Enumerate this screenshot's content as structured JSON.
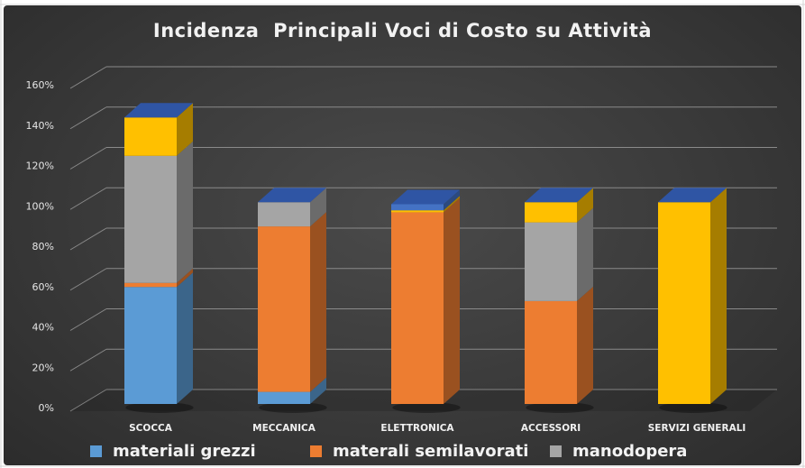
{
  "chart_data": {
    "type": "bar",
    "stacked": true,
    "title": "Incidenza  Principali Voci di Costo su Attività",
    "categories": [
      "SCOCCA",
      "MECCANICA",
      "ELETTRONICA",
      "ACCESSORI",
      "SERVIZI GENERALI"
    ],
    "y_ticks": [
      "0%",
      "20%",
      "40%",
      "60%",
      "80%",
      "100%",
      "120%",
      "140%",
      "160%"
    ],
    "ylim": [
      0,
      160
    ],
    "grid": true,
    "legend_position": "bottom",
    "series": [
      {
        "name": "materiali grezzi",
        "color": "#5b9bd5",
        "values": [
          58,
          6,
          0,
          0,
          0
        ]
      },
      {
        "name": "materali semilavorati",
        "color": "#ed7d31",
        "values": [
          2,
          82,
          95,
          51,
          0
        ]
      },
      {
        "name": "manodopera",
        "color": "#a5a5a5",
        "values": [
          63,
          12,
          0,
          39,
          0
        ]
      },
      {
        "name": "",
        "color": "#ffc000",
        "values": [
          19,
          0,
          1,
          10,
          100
        ]
      },
      {
        "name": "",
        "color": "#4472c4",
        "values": [
          0,
          0,
          3,
          0,
          0
        ]
      }
    ]
  },
  "legend": [
    {
      "label": "materiali grezzi",
      "color": "#5b9bd5"
    },
    {
      "label": "materali semilavorati",
      "color": "#ed7d31"
    },
    {
      "label": "manodopera",
      "color": "#a5a5a5"
    }
  ],
  "top_face_color": "#2f55a4"
}
